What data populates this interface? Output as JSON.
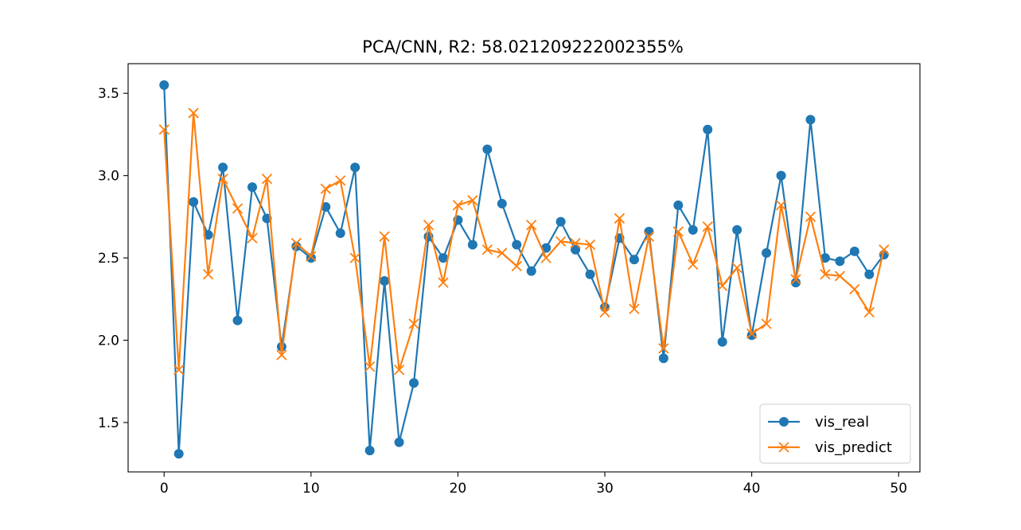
{
  "chart_data": {
    "type": "line",
    "title": "PCA/CNN, R2: 58.021209222002355%",
    "xlabel": "",
    "ylabel": "",
    "xlim": [
      -2.45,
      51.45
    ],
    "ylim": [
      1.2,
      3.68
    ],
    "x_ticks": [
      0,
      10,
      20,
      30,
      40,
      50
    ],
    "x_tick_labels": [
      "0",
      "10",
      "20",
      "30",
      "40",
      "50"
    ],
    "y_ticks": [
      1.5,
      2.0,
      2.5,
      3.0,
      3.5
    ],
    "y_tick_labels": [
      "1.5",
      "2.0",
      "2.5",
      "3.0",
      "3.5"
    ],
    "grid": false,
    "legend_position": "lower-right",
    "x": [
      0,
      1,
      2,
      3,
      4,
      5,
      6,
      7,
      8,
      9,
      10,
      11,
      12,
      13,
      14,
      15,
      16,
      17,
      18,
      19,
      20,
      21,
      22,
      23,
      24,
      25,
      26,
      27,
      28,
      29,
      30,
      31,
      32,
      33,
      34,
      35,
      36,
      37,
      38,
      39,
      40,
      41,
      42,
      43,
      44,
      45,
      46,
      47,
      48,
      49
    ],
    "series": [
      {
        "name": "vis_real",
        "color": "#1f77b4",
        "marker": "circle",
        "values": [
          3.55,
          1.31,
          2.84,
          2.64,
          3.05,
          2.12,
          2.93,
          2.74,
          1.96,
          2.57,
          2.5,
          2.81,
          2.65,
          3.05,
          1.33,
          2.36,
          1.38,
          1.74,
          2.63,
          2.5,
          2.73,
          2.58,
          3.16,
          2.83,
          2.58,
          2.42,
          2.56,
          2.72,
          2.55,
          2.4,
          2.2,
          2.62,
          2.49,
          2.66,
          1.89,
          2.82,
          2.67,
          3.28,
          1.99,
          2.67,
          2.03,
          2.53,
          3.0,
          2.35,
          3.34,
          2.5,
          2.48,
          2.54,
          2.4,
          2.52
        ]
      },
      {
        "name": "vis_predict",
        "color": "#ff7f0e",
        "marker": "x",
        "values": [
          3.28,
          1.82,
          3.38,
          2.4,
          2.98,
          2.8,
          2.62,
          2.98,
          1.91,
          2.59,
          2.51,
          2.92,
          2.97,
          2.5,
          1.84,
          2.63,
          1.82,
          2.1,
          2.7,
          2.35,
          2.82,
          2.85,
          2.55,
          2.53,
          2.45,
          2.7,
          2.5,
          2.6,
          2.59,
          2.58,
          2.17,
          2.74,
          2.19,
          2.63,
          1.95,
          2.66,
          2.46,
          2.69,
          2.33,
          2.44,
          2.04,
          2.1,
          2.82,
          2.37,
          2.75,
          2.4,
          2.39,
          2.31,
          2.17,
          2.55
        ]
      }
    ]
  }
}
